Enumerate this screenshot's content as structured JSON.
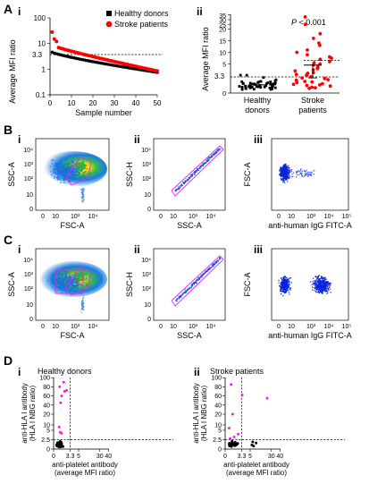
{
  "panels": {
    "A": "A",
    "B": "B",
    "C": "C",
    "D": "D",
    "Ai": "i",
    "Aii": "ii",
    "Bi": "i",
    "Bii": "ii",
    "Biii": "iii",
    "Ci": "i",
    "Cii": "ii",
    "Ciii": "iii",
    "Di": "i",
    "Dii": "ii"
  },
  "chart_data": [
    {
      "id": "A-i",
      "type": "scatter",
      "xlabel": "Sample number",
      "ylabel": "Average MFI ratio",
      "xlim": [
        0,
        50
      ],
      "ylim": [
        0.1,
        100
      ],
      "yscale": "log",
      "xticks": [
        "0",
        "10",
        "20",
        "30",
        "40",
        "50"
      ],
      "yticks": [
        "0.1",
        "1",
        "10",
        "100"
      ],
      "threshold_label": "3.3",
      "threshold": 3.3,
      "legend": [
        "Healthy donors",
        "Stroke patients"
      ],
      "legend_position": "top-right",
      "colors": {
        "healthy": "#000000",
        "stroke": "#ff0000"
      },
      "series": [
        {
          "name": "Healthy donors",
          "start": 4.6,
          "end": 0.75,
          "n": 50
        },
        {
          "name": "Stroke patients",
          "start": 28,
          "end": 0.85,
          "n": 50
        }
      ]
    },
    {
      "id": "A-ii",
      "type": "scatter",
      "ylabel": "Average MFI ratio",
      "categories": [
        "Healthy donors",
        "Stroke patients"
      ],
      "yticks": [
        "0",
        "5",
        "10",
        "15",
        "20",
        "25",
        "30",
        "35"
      ],
      "threshold_label": "3.3",
      "annotation": "P < 0.001",
      "annotation_italic": "P",
      "annotation_rest": " < 0.001",
      "median_healthy": 1.4,
      "median_stroke": 4.8
    },
    {
      "id": "B",
      "type": "scatter",
      "plots": [
        {
          "xlabel": "FSC-A",
          "ylabel": "SSC-A"
        },
        {
          "xlabel": "SSC-A",
          "ylabel": "SSC-H"
        },
        {
          "xlabel": "anti-human IgG FITC-A",
          "ylabel": "FSC-A"
        }
      ],
      "xticks": [
        "0",
        "10",
        "10³",
        "10⁴",
        "10⁵"
      ],
      "yticks": [
        "0",
        "10",
        "10²",
        "10³",
        "10⁴",
        "10⁵"
      ]
    },
    {
      "id": "C",
      "type": "scatter",
      "plots": [
        {
          "xlabel": "FSC-A",
          "ylabel": "SSC-A"
        },
        {
          "xlabel": "SSC-A",
          "ylabel": "SSC-H"
        },
        {
          "xlabel": "anti-human IgG FITC-A",
          "ylabel": "FSC-A"
        }
      ]
    },
    {
      "id": "D-i",
      "type": "scatter",
      "title": "Healthy donors",
      "xlabel_1": "anti-platelet antibody",
      "xlabel_2": "(average MFI ratio)",
      "ylabel_1": "anti-HLA I antibody",
      "ylabel_2": "(HLA I NBG ratio)",
      "xticks": [
        "0",
        "3.3",
        "5",
        "30",
        "40"
      ],
      "yticks": [
        "0",
        "2.5",
        "5",
        "10",
        "20",
        "40",
        "60",
        "80",
        "100"
      ],
      "x_threshold": 3.3,
      "y_threshold": 2.5
    },
    {
      "id": "D-ii",
      "type": "scatter",
      "title": "Stroke patients",
      "xlabel_1": "anti-platelet antibody",
      "xlabel_2": "(average MFI ratio)",
      "ylabel_1": "anti-HLA I antibody",
      "ylabel_2": "(HLA I NBG ratio)",
      "xticks": [
        "0",
        "3.3",
        "5",
        "30",
        "40"
      ],
      "yticks": [
        "0",
        "2.5",
        "5",
        "10",
        "20",
        "40",
        "60",
        "80",
        "100"
      ],
      "x_threshold": 3.3,
      "y_threshold": 2.5
    }
  ]
}
